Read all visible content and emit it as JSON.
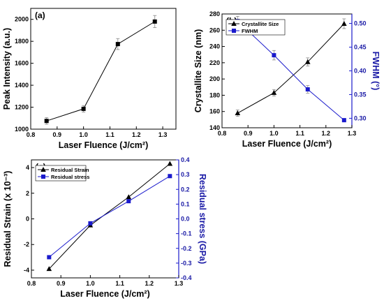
{
  "chart_data": [
    {
      "panel": "(a)",
      "type": "line",
      "xlabel": "Laser Fluence (J/cm²)",
      "ylabel": "Peak Intensity (a.u.)",
      "xlim": [
        0.8,
        1.35
      ],
      "ylim": [
        1000,
        2100
      ],
      "xticks": [
        "0.8",
        "0.9",
        "1.0",
        "1.1",
        "1.2",
        "1.3"
      ],
      "yticks": [
        "1000",
        "1200",
        "1400",
        "1600",
        "1800",
        "2000"
      ],
      "series": [
        {
          "marker": "square",
          "color": "#000000",
          "x": [
            0.86,
            1.0,
            1.13,
            1.27
          ],
          "y": [
            1075,
            1185,
            1775,
            1980
          ],
          "err": [
            30,
            30,
            50,
            55
          ]
        }
      ],
      "grid": false
    },
    {
      "panel": "(b)",
      "type": "line",
      "xlabel": "Laser Fluence (J/cm²)",
      "ylabel": "Crystallite Size (nm)",
      "ylabel_right": "FWHM (°)",
      "xlim": [
        0.8,
        1.3
      ],
      "ylim": [
        140,
        280
      ],
      "ylim_right": [
        0.28,
        0.52
      ],
      "xticks": [
        "0.8",
        "0.9",
        "1.0",
        "1.1",
        "1.2",
        "1.3"
      ],
      "yticks": [
        "140",
        "160",
        "180",
        "200",
        "220",
        "240",
        "260",
        "280"
      ],
      "yticks_right": [
        "0.30",
        "0.35",
        "0.40",
        "0.45",
        "0.50"
      ],
      "legend_position": "top-left",
      "series": [
        {
          "name": "Crystallite Size",
          "axis": "left",
          "marker": "triangle",
          "color": "#000000",
          "x": [
            0.86,
            1.0,
            1.13,
            1.27
          ],
          "y": [
            158,
            183,
            221,
            268
          ],
          "err": [
            4,
            4,
            5,
            6
          ]
        },
        {
          "name": "FWHM",
          "axis": "right",
          "marker": "square",
          "color": "#1a1acc",
          "x": [
            0.86,
            1.0,
            1.13,
            1.27
          ],
          "y": [
            0.505,
            0.433,
            0.361,
            0.296
          ],
          "err": [
            0.01,
            0.01,
            0.008,
            0.0
          ]
        }
      ],
      "grid": false
    },
    {
      "panel": "(c)",
      "type": "line",
      "xlabel": "Laser Fluence (J/cm²)",
      "ylabel": "Residual Strain (x 10⁻³)",
      "ylabel_right": "Residual stress (GPa)",
      "xlim": [
        0.8,
        1.3
      ],
      "ylim": [
        -4.6,
        4.6
      ],
      "ylim_right": [
        -0.4,
        0.4
      ],
      "xticks": [
        "0.8",
        "0.9",
        "1.0",
        "1.1",
        "1.2",
        "1.3"
      ],
      "yticks": [
        "-4",
        "-2",
        "0",
        "2",
        "4"
      ],
      "yticks_right": [
        "-0.4",
        "-0.3",
        "-0.2",
        "-0.1",
        "0.0",
        "0.1",
        "0.2",
        "0.3",
        "0.4"
      ],
      "legend_position": "top-left",
      "series": [
        {
          "name": "Residual Strain",
          "axis": "left",
          "marker": "triangle",
          "color": "#000000",
          "x": [
            0.86,
            1.0,
            1.13,
            1.27
          ],
          "y": [
            -3.9,
            -0.5,
            1.7,
            4.3
          ]
        },
        {
          "name": "Residual stress",
          "axis": "right",
          "marker": "square",
          "color": "#1a1acc",
          "x": [
            0.86,
            1.0,
            1.13,
            1.27
          ],
          "y": [
            -0.26,
            -0.03,
            0.12,
            0.29
          ]
        }
      ],
      "grid": false
    }
  ]
}
